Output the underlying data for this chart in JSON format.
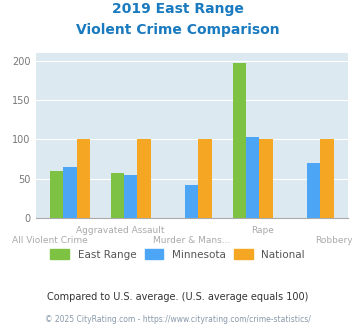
{
  "title_line1": "2019 East Range",
  "title_line2": "Violent Crime Comparison",
  "title_color": "#1a7abf",
  "categories": [
    "All Violent Crime",
    "Aggravated Assault",
    "Murder & Mans...",
    "Rape",
    "Robbery"
  ],
  "cat_labels_top": [
    "",
    "Aggravated Assault",
    "",
    "Rape",
    ""
  ],
  "cat_labels_bot": [
    "All Violent Crime",
    "",
    "Murder & Mans...",
    "",
    "Robbery"
  ],
  "east_range": [
    60,
    57,
    0,
    197,
    0
  ],
  "minnesota": [
    65,
    55,
    42,
    103,
    70
  ],
  "national": [
    100,
    100,
    100,
    100,
    100
  ],
  "east_range_color": "#7dc242",
  "minnesota_color": "#4da6f5",
  "national_color": "#f5a623",
  "bg_color": "#dce9f0",
  "ylim": [
    0,
    210
  ],
  "yticks": [
    0,
    50,
    100,
    150,
    200
  ],
  "legend_labels": [
    "East Range",
    "Minnesota",
    "National"
  ],
  "footnote1": "Compared to U.S. average. (U.S. average equals 100)",
  "footnote2": "© 2025 CityRating.com - https://www.cityrating.com/crime-statistics/",
  "footnote1_color": "#333333",
  "footnote2_color": "#8899aa"
}
